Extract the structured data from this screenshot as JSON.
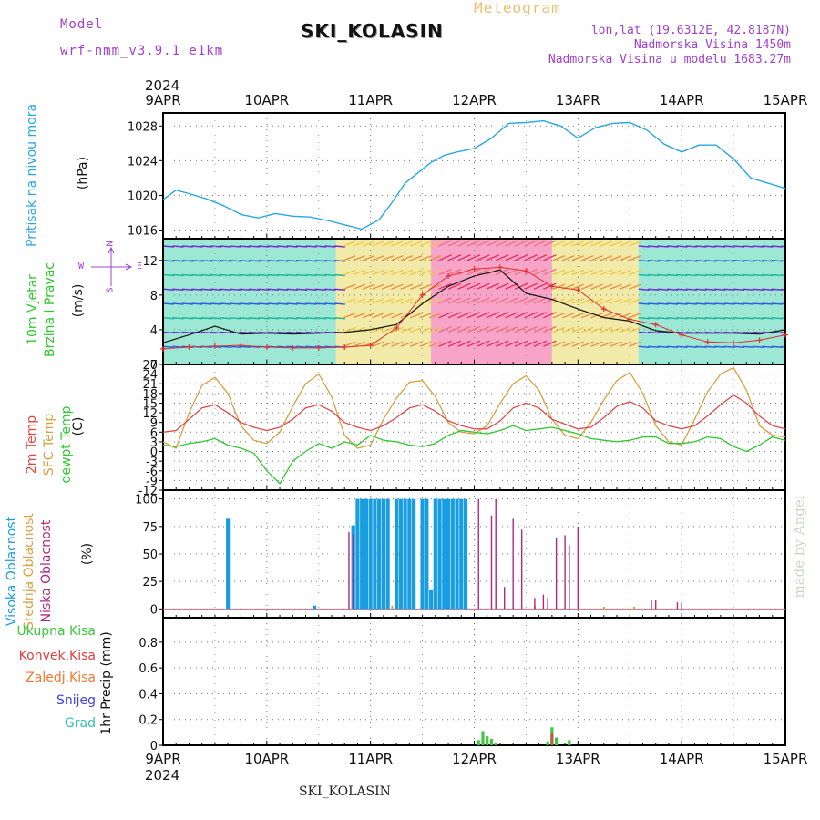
{
  "header": {
    "model_label": "Model",
    "model_name": "wrf-nmm_v3.9.1 e1km",
    "station_title": "SKI_KOLASIN",
    "meteogram_label": "Meteogram",
    "lonlat": "lon,lat (19.6312E, 42.8187N)",
    "altitude": "Nadmorska Visina 1450m",
    "model_altitude": "Nadmorska Visina u modelu 1683.27m"
  },
  "time_axis": {
    "year": "2024",
    "labels": [
      "9APR",
      "10APR",
      "11APR",
      "12APR",
      "13APR",
      "14APR",
      "15APR"
    ]
  },
  "footer": {
    "station": "SKI_KOLASIN",
    "credit": "made by Angel"
  },
  "panels": {
    "pressure": {
      "label": "Pritisak na nivou mora",
      "unit": "(hPa)"
    },
    "wind": {
      "label_line1": "10m Vjetar",
      "label_line2": "Brzina i Pravac",
      "unit": "(m/s)",
      "compass": [
        "N",
        "W",
        "E",
        "S"
      ]
    },
    "temp": {
      "labels": [
        "2m Temp",
        "SFC Temp",
        "dewpt Temp"
      ],
      "unit": "(C)"
    },
    "cloud": {
      "labels": [
        "Visoka Oblacnost",
        "Srednja Oblacnost",
        "Niska Oblacnost"
      ],
      "unit": "(%)"
    },
    "precip": {
      "legend": [
        "Ukupna Kisa",
        "Konvek.Kisa",
        "Zaledj.Kisa",
        "Snijeg",
        "Grad"
      ],
      "axis_label": "1hr Precip (mm)"
    }
  },
  "colors": {
    "pressure": "#29a8e0",
    "wind_speed": "#111111",
    "gust": "#e03030",
    "temp2m": "#e04848",
    "sfc": "#d8a040",
    "dewpt": "#2ec82e",
    "high_cloud": "#189ee0",
    "mid_cloud": "#d8a040",
    "low_cloud": "#b02880",
    "total_rain": "#3cc83c",
    "conv_rain": "#e04040",
    "frz_rain": "#f07830",
    "snow": "#4040e0",
    "graupel": "#30c0b0",
    "model": "#a040d0",
    "meteogram": "#e8c070"
  },
  "chart_data": [
    {
      "type": "line",
      "title": "Pritisak na nivou mora",
      "ylabel": "(hPa)",
      "ylim": [
        1015,
        1029.5
      ],
      "yticks": [
        1016,
        1020,
        1024,
        1028
      ],
      "x_range": [
        0,
        144
      ],
      "x_unit": "hours from 9APR 00UTC",
      "series": [
        {
          "x": [
            0,
            3,
            6,
            10,
            14,
            18,
            22,
            26,
            30,
            34,
            38,
            42,
            46,
            50,
            53,
            56,
            59,
            62,
            65,
            68,
            72,
            76,
            80,
            84,
            88,
            92,
            96,
            100,
            104,
            108,
            112,
            116,
            120,
            124,
            128,
            132,
            136,
            140,
            144
          ],
          "y": [
            1019.5,
            1020.6,
            1020.2,
            1019.6,
            1018.8,
            1017.8,
            1017.4,
            1017.9,
            1017.6,
            1017.5,
            1017.1,
            1016.6,
            1016.1,
            1017.2,
            1019.2,
            1021.4,
            1022.6,
            1023.8,
            1024.6,
            1025.0,
            1025.4,
            1026.6,
            1028.3,
            1028.4,
            1028.6,
            1028.0,
            1026.6,
            1027.8,
            1028.3,
            1028.4,
            1027.5,
            1025.9,
            1025.0,
            1025.8,
            1025.8,
            1024.2,
            1022.0,
            1021.4,
            1020.8
          ]
        }
      ]
    },
    {
      "type": "line",
      "title": "10m Vjetar Brzina i Pravac",
      "ylabel": "(m/s)",
      "ylim": [
        0,
        14.5
      ],
      "yticks": [
        0,
        4,
        8,
        12
      ],
      "series": [
        {
          "x": [
            0,
            6,
            12,
            18,
            24,
            30,
            36,
            42,
            48,
            54,
            60,
            66,
            72,
            78,
            84,
            90,
            96,
            102,
            108,
            114,
            120,
            126,
            132,
            138,
            144
          ],
          "y": [
            2.5,
            3.4,
            4.4,
            3.5,
            3.6,
            3.5,
            3.6,
            3.7,
            4.0,
            4.6,
            7.0,
            9.0,
            10.2,
            10.9,
            8.2,
            7.5,
            6.4,
            5.4,
            5.0,
            3.9,
            3.6,
            3.6,
            3.6,
            3.5,
            4.0
          ]
        },
        {
          "x": [
            0,
            6,
            12,
            18,
            24,
            30,
            36,
            42,
            48,
            54,
            60,
            66,
            72,
            78,
            84,
            90,
            96,
            102,
            108,
            114,
            120,
            126,
            132,
            138,
            144
          ],
          "y": [
            1.8,
            2.0,
            2.1,
            2.2,
            2.0,
            1.9,
            1.9,
            2.0,
            2.2,
            4.2,
            8.0,
            10.2,
            11.0,
            11.2,
            10.8,
            9.0,
            8.6,
            6.4,
            5.2,
            4.6,
            3.4,
            2.6,
            2.5,
            2.8,
            3.4
          ]
        }
      ],
      "wind_bands": [
        {
          "x": [
            0,
            40
          ],
          "speed_class": "low"
        },
        {
          "x": [
            40,
            62
          ],
          "speed_class": "medium"
        },
        {
          "x": [
            62,
            90
          ],
          "speed_class": "high"
        },
        {
          "x": [
            90,
            110
          ],
          "speed_class": "medium"
        },
        {
          "x": [
            110,
            144
          ],
          "speed_class": "low"
        }
      ]
    },
    {
      "type": "line",
      "title": "Temperatura",
      "ylabel": "(C)",
      "ylim": [
        -12,
        27
      ],
      "yticks": [
        -12,
        -9,
        -6,
        -3,
        0,
        3,
        6,
        9,
        12,
        15,
        18,
        21,
        24,
        27
      ],
      "series": [
        {
          "name": "2m Temp",
          "x": [
            0,
            3,
            6,
            9,
            12,
            15,
            18,
            21,
            24,
            27,
            30,
            33,
            36,
            39,
            42,
            45,
            48,
            51,
            54,
            57,
            60,
            63,
            66,
            69,
            72,
            75,
            78,
            81,
            84,
            87,
            90,
            93,
            96,
            99,
            102,
            105,
            108,
            111,
            114,
            117,
            120,
            123,
            126,
            129,
            132,
            135,
            138,
            141,
            144
          ],
          "y": [
            6,
            6.5,
            10,
            13.5,
            14.5,
            12,
            9,
            7.5,
            6.5,
            7.5,
            10,
            13.5,
            14.5,
            12.5,
            9,
            7.5,
            6.5,
            8,
            10.5,
            13.5,
            14.5,
            12.5,
            9.5,
            8,
            7,
            7,
            9.5,
            13.5,
            15,
            13.5,
            10,
            8.5,
            7,
            7.5,
            10.5,
            14,
            15.5,
            13.5,
            9.5,
            8,
            7,
            8,
            11,
            14.5,
            17.5,
            15,
            11,
            8,
            7
          ]
        },
        {
          "name": "SFC Temp",
          "x": [
            0,
            3,
            6,
            9,
            12,
            15,
            18,
            21,
            24,
            27,
            30,
            33,
            36,
            39,
            42,
            45,
            48,
            51,
            54,
            57,
            60,
            63,
            66,
            69,
            72,
            75,
            78,
            81,
            84,
            87,
            90,
            93,
            96,
            99,
            102,
            105,
            108,
            111,
            114,
            117,
            120,
            123,
            126,
            129,
            132,
            135,
            138,
            141,
            144
          ],
          "y": [
            3,
            1,
            12,
            20.5,
            23,
            18,
            8,
            3.5,
            2.5,
            6,
            14,
            21,
            24,
            17,
            5,
            1,
            2,
            10,
            16.5,
            21.5,
            22,
            17,
            9,
            6,
            5.5,
            8,
            15,
            21,
            23.5,
            19,
            10,
            5,
            4,
            9,
            16,
            22,
            24.5,
            18,
            8,
            3,
            2,
            10,
            18.5,
            24,
            26,
            19,
            8,
            5,
            4.5
          ]
        },
        {
          "name": "dewpt Temp",
          "x": [
            0,
            3,
            6,
            9,
            12,
            15,
            18,
            21,
            24,
            27,
            30,
            33,
            36,
            39,
            42,
            45,
            48,
            51,
            54,
            57,
            60,
            63,
            66,
            69,
            72,
            75,
            78,
            81,
            84,
            87,
            90,
            93,
            96,
            99,
            102,
            105,
            108,
            111,
            114,
            117,
            120,
            123,
            126,
            129,
            132,
            135,
            138,
            141,
            144
          ],
          "y": [
            2,
            1.5,
            2.5,
            3,
            4,
            2,
            1,
            -0.5,
            -6,
            -10,
            -3,
            0,
            2.5,
            1,
            3,
            2,
            5,
            3.5,
            3,
            2,
            1.5,
            2.5,
            5,
            6.5,
            6,
            5.5,
            6.5,
            8,
            6.5,
            7,
            7.5,
            6.5,
            5.5,
            4,
            3.5,
            3,
            3.5,
            4.5,
            4.5,
            2.5,
            2.5,
            3,
            4.5,
            4,
            1.5,
            0,
            2,
            4.5,
            3.5
          ]
        }
      ]
    },
    {
      "type": "bar",
      "title": "Oblacnost",
      "ylabel": "(%)",
      "ylim": [
        -8,
        108
      ],
      "yticks": [
        0,
        25,
        50,
        75,
        100
      ],
      "series": [
        {
          "name": "Visoka Oblacnost",
          "x": [
            15,
            35,
            44,
            45,
            46,
            47,
            48,
            49,
            50,
            51,
            52,
            54,
            55,
            56,
            57,
            58,
            60,
            61,
            62,
            63,
            64,
            65,
            66,
            67,
            68,
            69,
            70
          ],
          "values": [
            82,
            3,
            76,
            100,
            100,
            100,
            100,
            100,
            100,
            100,
            100,
            100,
            100,
            100,
            100,
            100,
            100,
            100,
            17,
            100,
            100,
            100,
            100,
            100,
            100,
            100,
            100
          ]
        },
        {
          "name": "Srednja Oblacnost",
          "x": [
            53,
            86,
            102,
            109
          ],
          "values": [
            3,
            3,
            2,
            2
          ]
        },
        {
          "name": "Niska Oblacnost",
          "x": [
            43,
            44,
            73,
            76,
            77,
            79,
            81,
            83,
            86,
            88,
            89,
            91,
            93,
            94,
            96,
            113,
            114,
            119,
            120
          ],
          "values": [
            70,
            68,
            100,
            85,
            100,
            20,
            82,
            72,
            10,
            13,
            10,
            65,
            67,
            58,
            75,
            8,
            8,
            6,
            6
          ]
        }
      ]
    },
    {
      "type": "bar",
      "title": "1hr Precip",
      "ylabel": "1hr Precip (mm)",
      "ylim": [
        0,
        0.99
      ],
      "yticks": [
        0,
        0.2,
        0.4,
        0.6,
        0.8
      ],
      "series": [
        {
          "name": "Ukupna Kisa",
          "x": [
            73,
            74,
            75,
            76,
            77,
            89,
            90,
            91,
            94
          ],
          "values": [
            0.04,
            0.11,
            0.07,
            0.05,
            0.02,
            0.03,
            0.14,
            0.06,
            0.04
          ]
        },
        {
          "name": "Konvek.Kisa",
          "x": [
            90
          ],
          "values": [
            0.09
          ]
        },
        {
          "name": "Zaledj.Kisa",
          "x": [],
          "values": []
        },
        {
          "name": "Snijeg",
          "x": [],
          "values": []
        },
        {
          "name": "Grad",
          "x": [],
          "values": []
        }
      ]
    }
  ]
}
